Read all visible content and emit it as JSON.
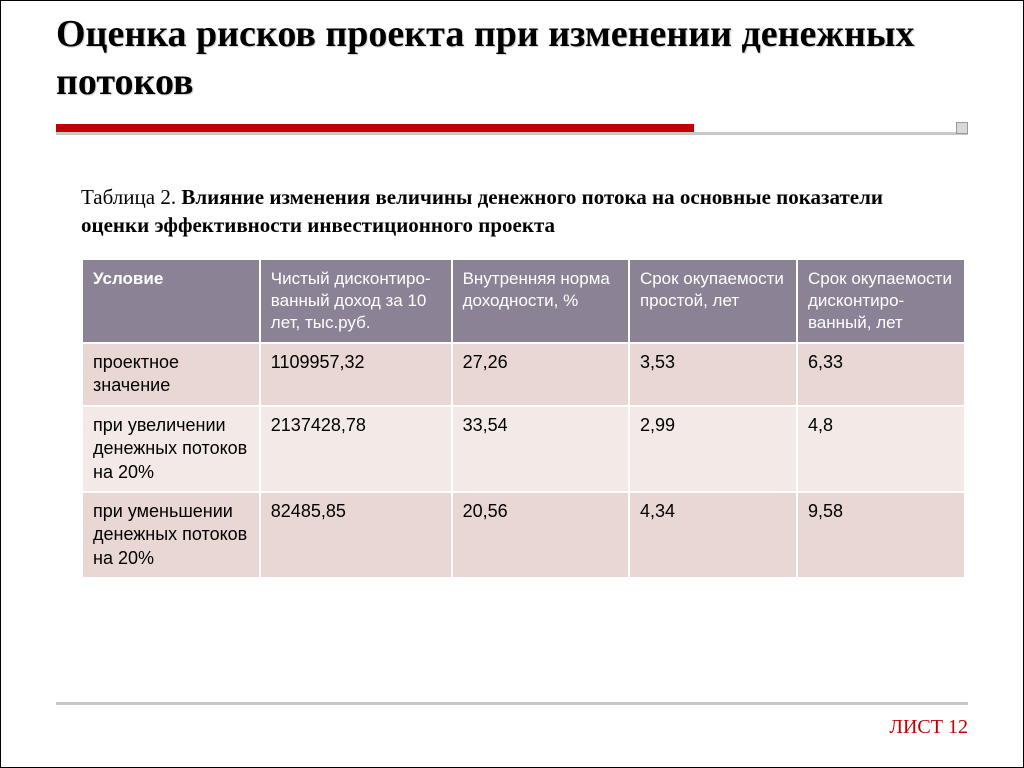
{
  "title": "Оценка рисков проекта при изменении денежных потоков",
  "caption_label": "Таблица 2. ",
  "caption_bold": "Влияние изменения величины денежного потока на основные показатели оценки эффективности инвестиционного проекта",
  "colors": {
    "accent": "#c00000",
    "header_bg": "#8b8395",
    "row_odd": "#e8d7d3",
    "row_even": "#f3eae8",
    "rule_gray": "#c8c8c8"
  },
  "table": {
    "columns": [
      "Условие",
      "Чистый дисконтиро-ванный доход за 10 лет, тыс.руб.",
      "Внутренняя норма доходности, %",
      "Срок окупаемости простой, лет",
      "Срок окупаемости дисконтиро-ванный, лет"
    ],
    "rows": [
      [
        "проектное значение",
        "1109957,32",
        "27,26",
        "3,53",
        "6,33"
      ],
      [
        "при увеличении денежных потоков на 20%",
        "2137428,78",
        "33,54",
        "2,99",
        "4,8"
      ],
      [
        "при уменьшении денежных потоков на 20%",
        "82485,85",
        "20,56",
        "4,34",
        "9,58"
      ]
    ]
  },
  "footer": "ЛИСТ 12"
}
